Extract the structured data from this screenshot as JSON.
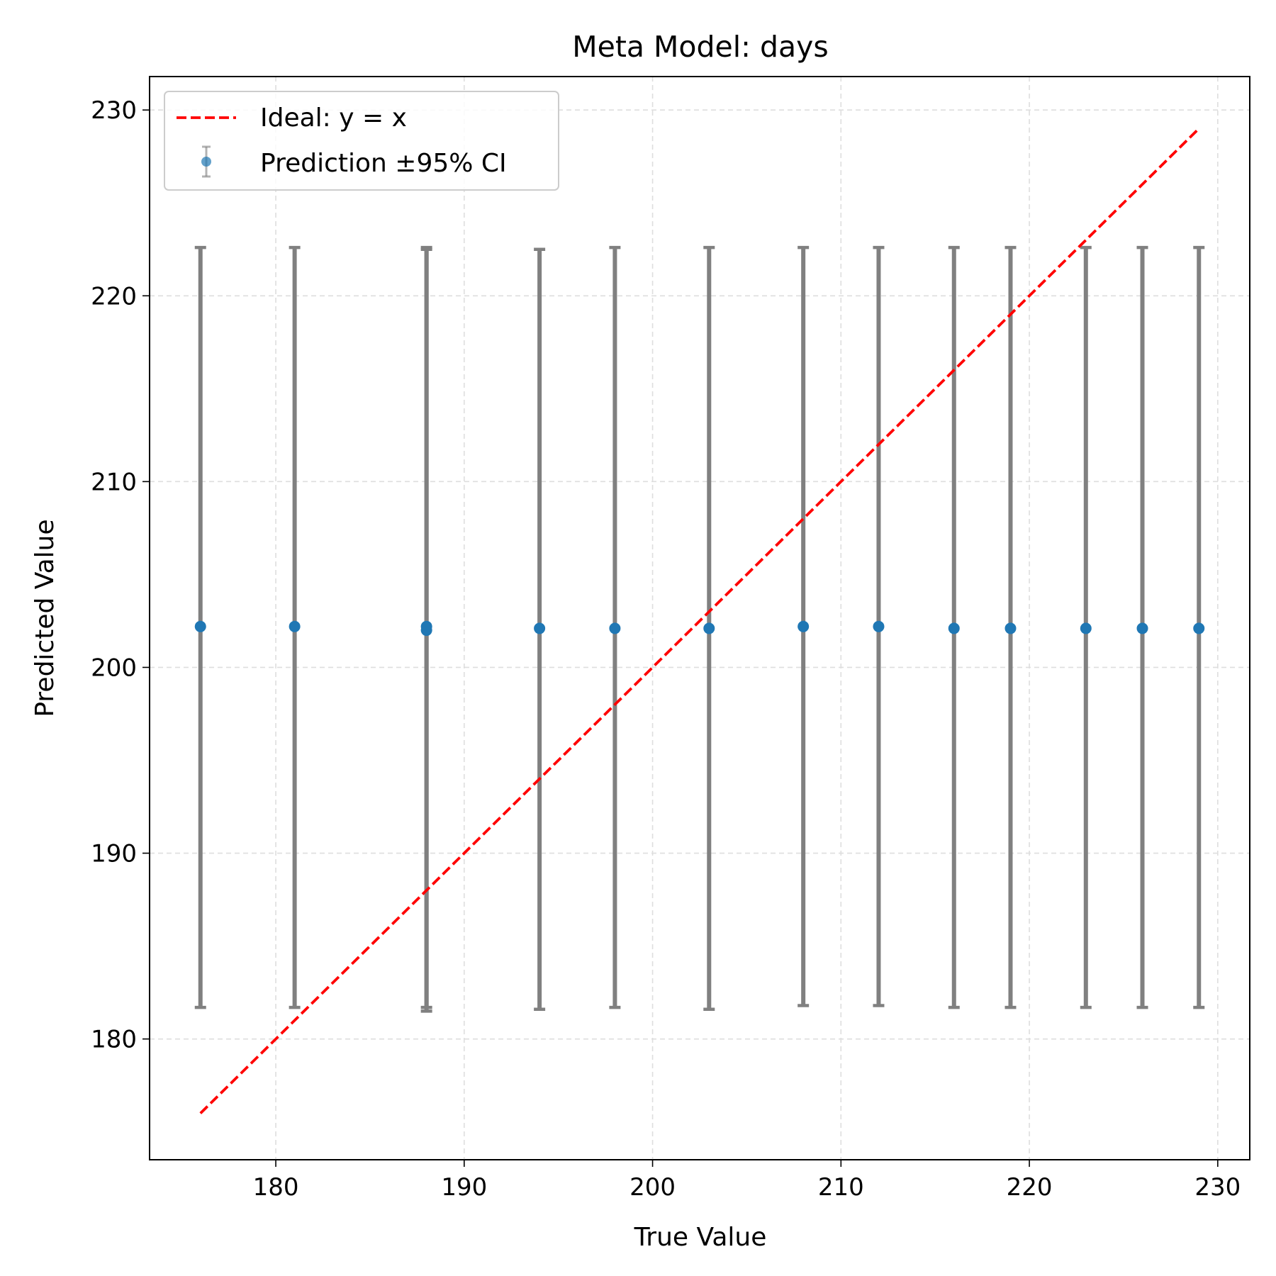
{
  "chart_data": {
    "type": "scatter",
    "title": "Meta Model: days",
    "xlabel": "True Value",
    "ylabel": "Predicted Value",
    "xlim": [
      173.3,
      231.7
    ],
    "ylim": [
      173.5,
      231.8
    ],
    "xticks": [
      180,
      190,
      200,
      210,
      220,
      230
    ],
    "yticks": [
      180,
      190,
      200,
      210,
      220,
      230
    ],
    "grid": true,
    "legend_position": "top-left",
    "legend": {
      "ideal_label": "Ideal: y = x",
      "prediction_label": "Prediction ±95% CI"
    },
    "ideal_line": {
      "x": [
        176,
        229
      ],
      "y": [
        176,
        229
      ],
      "color": "#ff0000"
    },
    "series": [
      {
        "name": "Prediction ±95% CI",
        "color": "#1f77b4",
        "errorbar_color": "#808080",
        "points": [
          {
            "x": 176,
            "y": 202.2,
            "lower": 181.7,
            "upper": 222.6
          },
          {
            "x": 181,
            "y": 202.2,
            "lower": 181.7,
            "upper": 222.6
          },
          {
            "x": 188,
            "y": 202.0,
            "lower": 181.5,
            "upper": 222.5
          },
          {
            "x": 188,
            "y": 202.2,
            "lower": 181.7,
            "upper": 222.6
          },
          {
            "x": 194,
            "y": 202.1,
            "lower": 181.6,
            "upper": 222.5
          },
          {
            "x": 198,
            "y": 202.1,
            "lower": 181.7,
            "upper": 222.6
          },
          {
            "x": 203,
            "y": 202.1,
            "lower": 181.6,
            "upper": 222.6
          },
          {
            "x": 208,
            "y": 202.2,
            "lower": 181.8,
            "upper": 222.6
          },
          {
            "x": 212,
            "y": 202.2,
            "lower": 181.8,
            "upper": 222.6
          },
          {
            "x": 216,
            "y": 202.1,
            "lower": 181.7,
            "upper": 222.6
          },
          {
            "x": 219,
            "y": 202.1,
            "lower": 181.7,
            "upper": 222.6
          },
          {
            "x": 223,
            "y": 202.1,
            "lower": 181.7,
            "upper": 222.6
          },
          {
            "x": 226,
            "y": 202.1,
            "lower": 181.7,
            "upper": 222.6
          },
          {
            "x": 229,
            "y": 202.1,
            "lower": 181.7,
            "upper": 222.6
          }
        ]
      }
    ]
  }
}
